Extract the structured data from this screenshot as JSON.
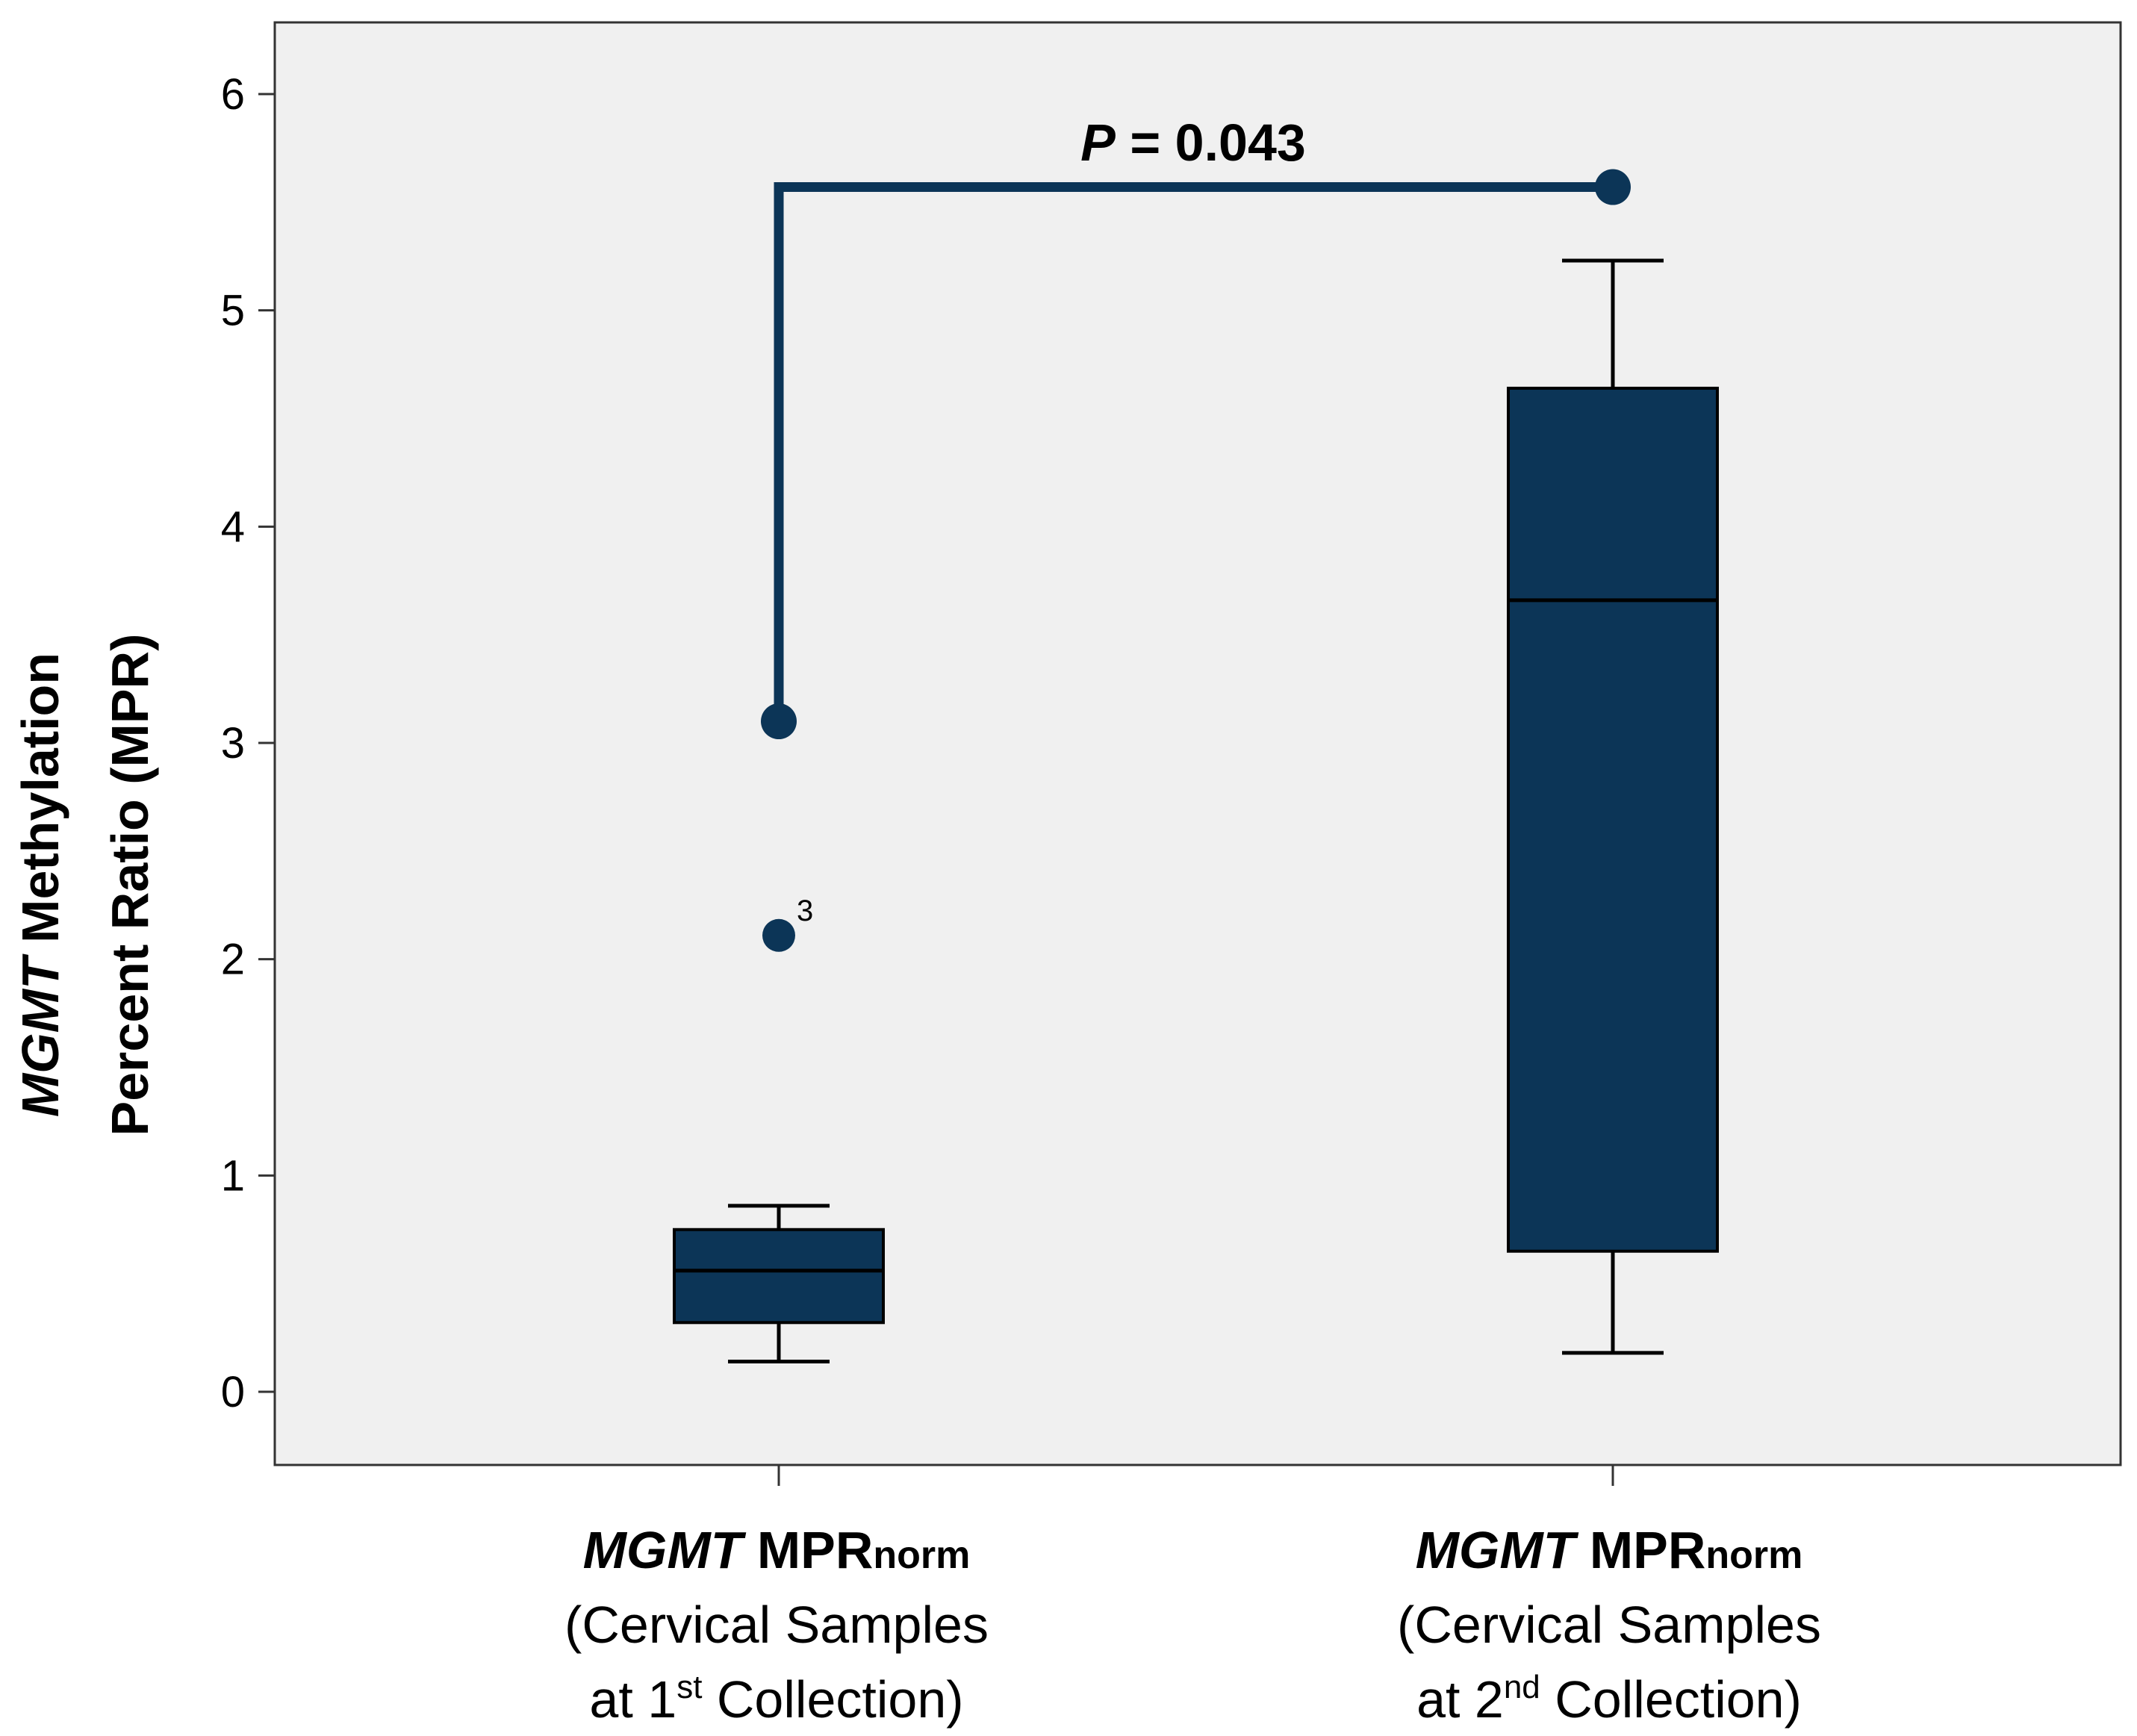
{
  "chart_data": {
    "type": "boxplot",
    "ylabel_line1_italic": "MGMT",
    "ylabel_line1_rest": " Methylation",
    "ylabel_line2": "Percent Ratio (MPR)",
    "ylim": [
      -0.3,
      6.4
    ],
    "yticks": [
      0,
      1,
      2,
      3,
      4,
      5,
      6
    ],
    "colors": {
      "box": "#0c3557",
      "plot_bg": "#f0f0f0",
      "line": "#000000"
    },
    "groups": [
      {
        "name_italic": "MGMT",
        "name_bold": " MPR",
        "name_sub": "norm",
        "line2": "(Cervical Samples",
        "line3_pre": "at 1",
        "line3_sup": "st",
        "line3_post": " Collection)",
        "whisker_low": 0.14,
        "q1": 0.32,
        "median": 0.56,
        "q3": 0.75,
        "whisker_high": 0.86,
        "outliers": [
          {
            "value": 2.11,
            "label": "3"
          }
        ]
      },
      {
        "name_italic": "MGMT",
        "name_bold": " MPR",
        "name_sub": "norm",
        "line2": "(Cervical Samples",
        "line3_pre": "at 2",
        "line3_sup": "nd",
        "line3_post": " Collection)",
        "whisker_low": 0.18,
        "q1": 0.65,
        "median": 3.66,
        "q3": 4.64,
        "whisker_high": 5.23,
        "outliers": []
      }
    ],
    "significance": {
      "label_italic": "P",
      "label_rest": " = 0.043",
      "left_y": 3.1,
      "right_y": 5.57,
      "bar_y": 5.57
    }
  }
}
